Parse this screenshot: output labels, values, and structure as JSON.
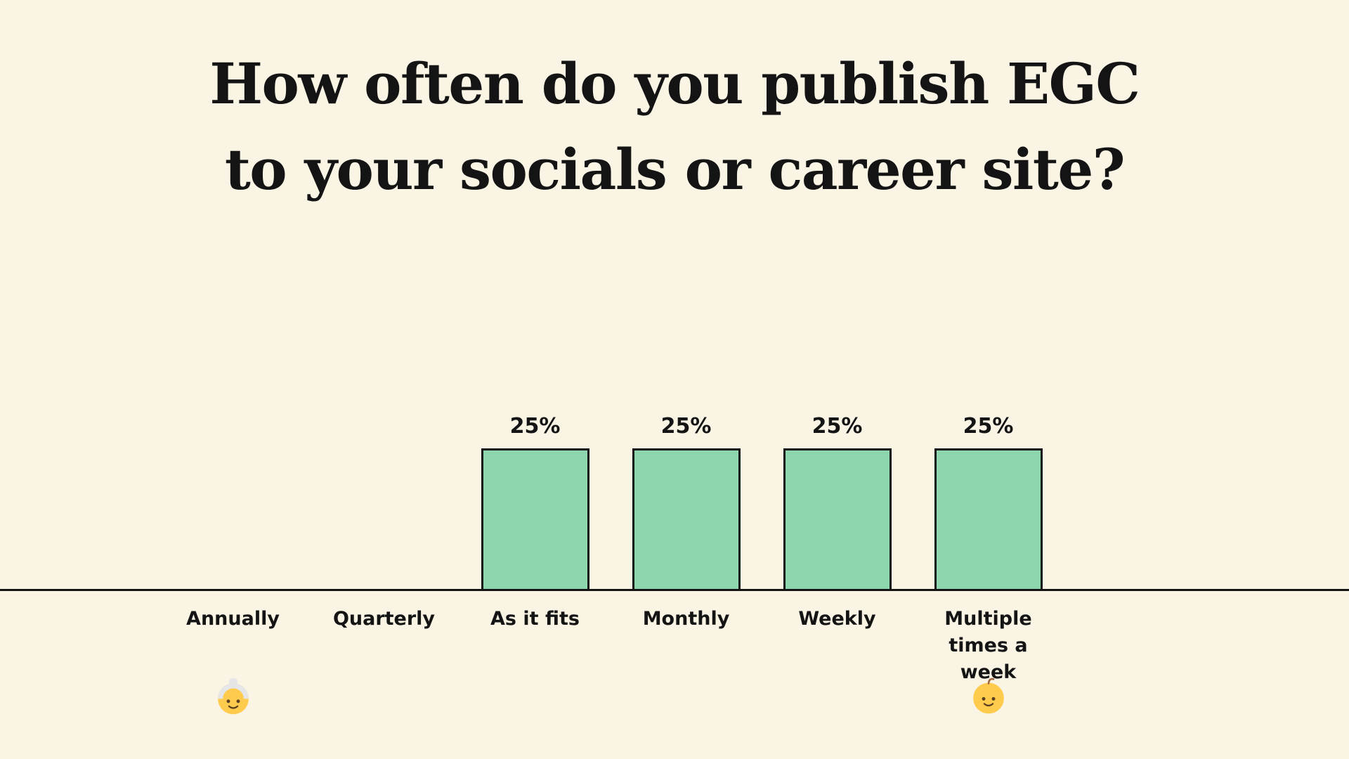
{
  "page": {
    "background_color": "#FAF4E4",
    "title_line1": "How often do you publish EGC",
    "title_line2": "to your socials or career site?"
  },
  "chart_data": {
    "type": "bar",
    "title": "How often do you publish EGC to your socials or career site?",
    "categories": [
      "Annually",
      "Quarterly",
      "As it fits",
      "Monthly",
      "Weekly",
      "Multiple times a week"
    ],
    "values": [
      0,
      0,
      25,
      25,
      25,
      25
    ],
    "value_labels": [
      "",
      "",
      "25%",
      "25%",
      "25%",
      "25%"
    ],
    "unit": "%",
    "ylim": [
      0,
      25
    ],
    "grid": false,
    "legend": false,
    "xlabel": "",
    "ylabel": "",
    "bar_color": "#8ED7AE",
    "bar_border_color": "#141414",
    "baseline_color": "#141414",
    "pixels_per_percent": 8,
    "annotations": [
      {
        "category_index": 0,
        "icon": "old-woman-emoji",
        "emoji": "👵"
      },
      {
        "category_index": 5,
        "icon": "baby-emoji",
        "emoji": "👶"
      }
    ]
  }
}
